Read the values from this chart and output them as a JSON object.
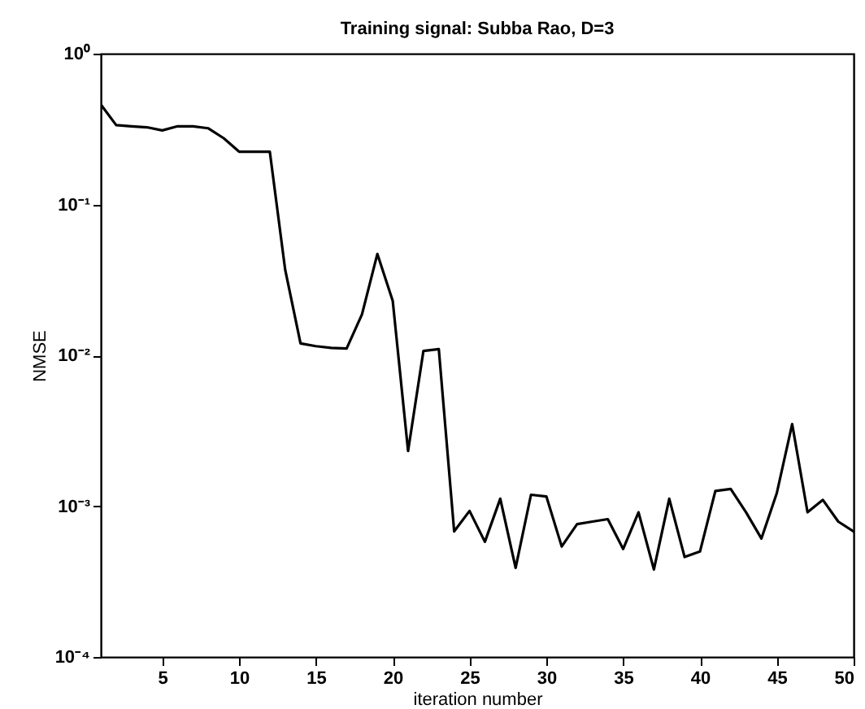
{
  "chart_data": {
    "type": "line",
    "title": "Training signal: Subba Rao, D=3",
    "xlabel": "iteration number",
    "ylabel": "NMSE",
    "x": [
      1,
      2,
      3,
      4,
      5,
      6,
      7,
      8,
      9,
      10,
      11,
      12,
      13,
      14,
      15,
      16,
      17,
      18,
      19,
      20,
      21,
      22,
      23,
      24,
      25,
      26,
      27,
      28,
      29,
      30,
      31,
      32,
      33,
      34,
      35,
      36,
      37,
      38,
      39,
      40,
      41,
      42,
      43,
      44,
      45,
      46,
      47,
      48,
      49,
      50
    ],
    "series": [
      {
        "color": "#000000",
        "values": [
          0.46,
          0.336,
          0.33,
          0.325,
          0.31,
          0.33,
          0.33,
          0.32,
          0.275,
          0.224,
          0.224,
          0.224,
          0.037,
          0.012,
          0.0115,
          0.0112,
          0.0111,
          0.0187,
          0.047,
          0.023,
          0.00232,
          0.0107,
          0.011,
          0.00068,
          0.00093,
          0.00058,
          0.00112,
          0.00039,
          0.00119,
          0.00116,
          0.00054,
          0.00076,
          0.00079,
          0.00082,
          0.00052,
          0.00091,
          0.00038,
          0.00112,
          0.00046,
          0.0005,
          0.00126,
          0.0013,
          0.00091,
          0.00061,
          0.00122,
          0.0035,
          0.00091,
          0.0011,
          0.00079,
          0.00068
        ]
      }
    ],
    "xlim": [
      1,
      50
    ],
    "xticks": [
      5,
      10,
      15,
      20,
      25,
      30,
      35,
      40,
      45,
      50
    ],
    "ylim": [
      0.0001,
      1
    ],
    "yticks": [
      {
        "value": 0.0001,
        "label": "10⁻⁴"
      },
      {
        "value": 0.001,
        "label": "10⁻³"
      },
      {
        "value": 0.01,
        "label": "10⁻²"
      },
      {
        "value": 0.1,
        "label": "10⁻¹"
      },
      {
        "value": 1,
        "label": "10⁰"
      }
    ],
    "log": "y",
    "grid": false,
    "marker": "none",
    "line_style": "solid"
  }
}
